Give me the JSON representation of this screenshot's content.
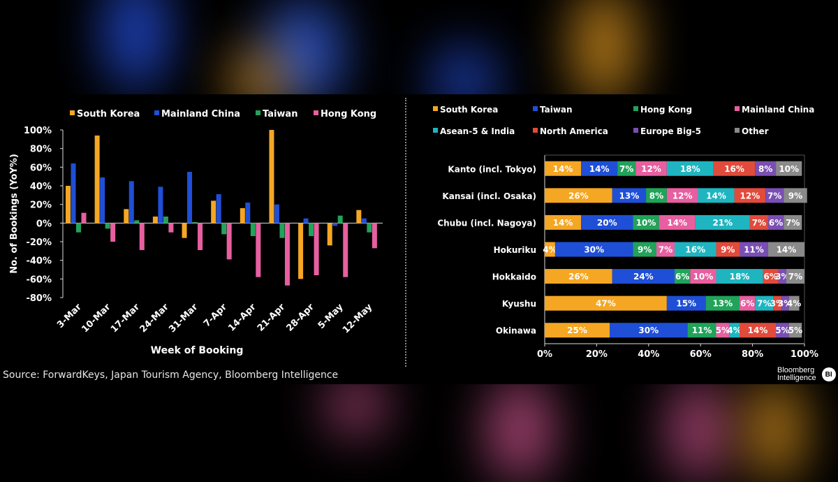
{
  "source": "Source: ForwardKeys, Japan Tourism Agency, Bloomberg Intelligence",
  "logo": {
    "line1": "Bloomberg",
    "line2": "Intelligence",
    "badge": "BI"
  },
  "chart_data": [
    {
      "type": "bar",
      "title": "",
      "xlabel": "Week of Booking",
      "ylabel": "No. of Bookings (YoY%)",
      "ylim": [
        -80,
        100
      ],
      "yticks": [
        "-80%",
        "-60%",
        "-40%",
        "-20%",
        "0%",
        "20%",
        "40%",
        "60%",
        "80%",
        "100%"
      ],
      "legend_position": "top",
      "categories": [
        "3-Mar",
        "10-Mar",
        "17-Mar",
        "24-Mar",
        "31-Mar",
        "7-Apr",
        "14-Apr",
        "21-Apr",
        "28-Apr",
        "5-May",
        "12-May"
      ],
      "series": [
        {
          "name": "South Korea",
          "color": "#f5a623",
          "values": [
            40,
            94,
            15,
            7,
            -16,
            24,
            16,
            100,
            -60,
            -24,
            14
          ]
        },
        {
          "name": "Mainland China",
          "color": "#1f4fd6",
          "values": [
            64,
            49,
            45,
            39,
            55,
            31,
            22,
            20,
            5,
            -3,
            5
          ]
        },
        {
          "name": "Taiwan",
          "color": "#21a35a",
          "values": [
            -10,
            -6,
            3,
            7,
            1,
            -12,
            -14,
            -16,
            -14,
            8,
            -10
          ]
        },
        {
          "name": "Hong Kong",
          "color": "#e75fa0",
          "values": [
            11,
            -20,
            -29,
            -10,
            -29,
            -39,
            -58,
            -67,
            -56,
            -58,
            -27
          ]
        }
      ]
    },
    {
      "type": "bar",
      "orientation": "horizontal",
      "stacked": true,
      "title": "",
      "xlim": [
        0,
        100
      ],
      "xticks": [
        "0%",
        "20%",
        "40%",
        "60%",
        "80%",
        "100%"
      ],
      "legend_position": "top",
      "categories": [
        "Kanto (incl. Tokyo)",
        "Kansai (incl. Osaka)",
        "Chubu (incl. Nagoya)",
        "Hokuriku",
        "Hokkaido",
        "Kyushu",
        "Okinawa"
      ],
      "series": [
        {
          "name": "South Korea",
          "color": "#f5a623",
          "values": [
            14,
            26,
            14,
            4,
            26,
            47,
            25
          ]
        },
        {
          "name": "Taiwan",
          "color": "#1f4fd6",
          "values": [
            14,
            13,
            20,
            30,
            24,
            15,
            30
          ]
        },
        {
          "name": "Hong Kong",
          "color": "#21a35a",
          "values": [
            7,
            8,
            10,
            9,
            6,
            13,
            11
          ]
        },
        {
          "name": "Mainland China",
          "color": "#e75fa0",
          "values": [
            12,
            12,
            14,
            7,
            10,
            6,
            5
          ]
        },
        {
          "name": "Asean-5 & India",
          "color": "#1fb5c0",
          "values": [
            18,
            14,
            21,
            16,
            18,
            7,
            4
          ]
        },
        {
          "name": "North America",
          "color": "#e14b3b",
          "values": [
            16,
            12,
            7,
            9,
            6,
            3,
            14
          ]
        },
        {
          "name": "Europe Big-5",
          "color": "#7a4fb3",
          "values": [
            8,
            7,
            6,
            11,
            3,
            3,
            5
          ]
        },
        {
          "name": "Other",
          "color": "#8a8a8a",
          "values": [
            10,
            9,
            7,
            14,
            7,
            4,
            5
          ]
        }
      ]
    }
  ]
}
